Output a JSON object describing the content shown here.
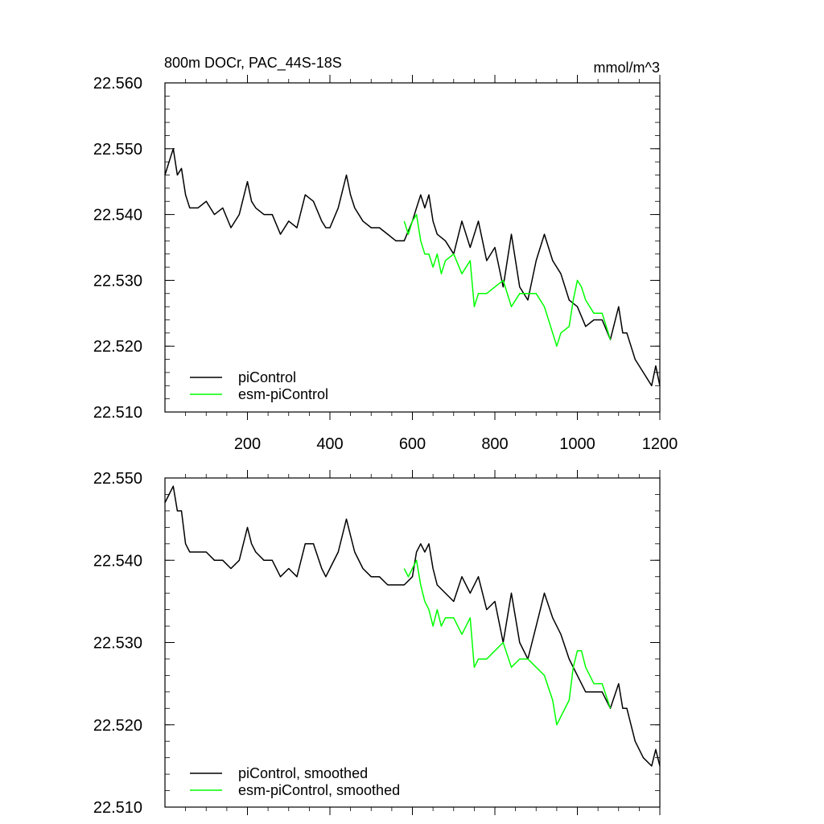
{
  "chart_data": [
    {
      "type": "line",
      "title": "800m DOCr, PAC_44S-18S",
      "units": "mmol/m^3",
      "xlim": [
        0,
        1200
      ],
      "ylim": [
        22.51,
        22.56
      ],
      "x_ticks": [
        200,
        400,
        600,
        800,
        1000,
        1200
      ],
      "x_tick_labels": [
        "200",
        "400",
        "600",
        "800",
        "1000",
        "1200"
      ],
      "y_ticks": [
        22.51,
        22.52,
        22.53,
        22.54,
        22.55,
        22.56
      ],
      "y_tick_labels": [
        "22.510",
        "22.520",
        "22.530",
        "22.540",
        "22.550",
        "22.560"
      ],
      "legend_position": "bottom-left",
      "series": [
        {
          "name": "piControl",
          "color": "#000000",
          "x": [
            0,
            10,
            20,
            30,
            40,
            50,
            60,
            80,
            100,
            120,
            140,
            160,
            180,
            200,
            210,
            220,
            240,
            260,
            280,
            300,
            320,
            340,
            360,
            380,
            390,
            400,
            420,
            440,
            450,
            460,
            480,
            500,
            520,
            540,
            560,
            580,
            600,
            610,
            620,
            630,
            640,
            650,
            660,
            680,
            700,
            720,
            740,
            760,
            780,
            800,
            820,
            840,
            860,
            880,
            900,
            920,
            940,
            960,
            980,
            1000,
            1020,
            1040,
            1060,
            1080,
            1100,
            1110,
            1120,
            1140,
            1160,
            1180,
            1190,
            1200
          ],
          "y": [
            22.546,
            22.548,
            22.55,
            22.546,
            22.547,
            22.543,
            22.541,
            22.541,
            22.542,
            22.54,
            22.541,
            22.538,
            22.54,
            22.545,
            22.542,
            22.541,
            22.54,
            22.54,
            22.537,
            22.539,
            22.538,
            22.543,
            22.542,
            22.539,
            22.538,
            22.538,
            22.541,
            22.546,
            22.543,
            22.541,
            22.539,
            22.538,
            22.538,
            22.537,
            22.536,
            22.536,
            22.539,
            22.541,
            22.543,
            22.541,
            22.543,
            22.539,
            22.537,
            22.536,
            22.534,
            22.539,
            22.535,
            22.539,
            22.533,
            22.535,
            22.529,
            22.537,
            22.529,
            22.527,
            22.533,
            22.537,
            22.533,
            22.531,
            22.527,
            22.526,
            22.523,
            22.524,
            22.524,
            22.521,
            22.526,
            22.522,
            22.522,
            22.518,
            22.516,
            22.514,
            22.517,
            22.514
          ]
        },
        {
          "name": "esm-piControl",
          "color": "#00ff00",
          "x": [
            580,
            590,
            600,
            610,
            620,
            630,
            640,
            650,
            660,
            670,
            680,
            700,
            720,
            740,
            750,
            760,
            780,
            800,
            820,
            840,
            860,
            880,
            900,
            920,
            940,
            950,
            960,
            980,
            990,
            1000,
            1010,
            1020,
            1040,
            1060,
            1080
          ],
          "y": [
            22.539,
            22.537,
            22.539,
            22.54,
            22.536,
            22.534,
            22.534,
            22.532,
            22.534,
            22.531,
            22.533,
            22.534,
            22.531,
            22.533,
            22.526,
            22.528,
            22.528,
            22.529,
            22.53,
            22.526,
            22.528,
            22.528,
            22.528,
            22.526,
            22.522,
            22.52,
            22.522,
            22.523,
            22.527,
            22.53,
            22.529,
            22.527,
            22.525,
            22.525,
            22.521
          ]
        }
      ]
    },
    {
      "type": "line",
      "xlim": [
        0,
        1200
      ],
      "ylim": [
        22.51,
        22.55
      ],
      "y_ticks": [
        22.51,
        22.52,
        22.53,
        22.54,
        22.55
      ],
      "y_tick_labels": [
        "22.510",
        "22.520",
        "22.530",
        "22.540",
        "22.550"
      ],
      "x_ticks": [
        200,
        400,
        600,
        800,
        1000,
        1200
      ],
      "legend_position": "bottom-left",
      "series": [
        {
          "name": "piControl, smoothed",
          "color": "#000000",
          "x": [
            0,
            10,
            20,
            30,
            40,
            50,
            60,
            80,
            100,
            120,
            140,
            160,
            180,
            200,
            210,
            220,
            240,
            260,
            280,
            300,
            320,
            340,
            360,
            380,
            390,
            400,
            420,
            440,
            450,
            460,
            480,
            500,
            520,
            540,
            560,
            580,
            600,
            610,
            620,
            630,
            640,
            650,
            660,
            680,
            700,
            720,
            740,
            760,
            780,
            800,
            820,
            840,
            860,
            880,
            900,
            920,
            940,
            960,
            980,
            1000,
            1020,
            1040,
            1060,
            1080,
            1100,
            1110,
            1120,
            1140,
            1160,
            1180,
            1190,
            1200
          ],
          "y": [
            22.547,
            22.548,
            22.549,
            22.546,
            22.546,
            22.542,
            22.541,
            22.541,
            22.541,
            22.54,
            22.54,
            22.539,
            22.54,
            22.544,
            22.542,
            22.541,
            22.54,
            22.54,
            22.538,
            22.539,
            22.538,
            22.542,
            22.542,
            22.539,
            22.538,
            22.539,
            22.541,
            22.545,
            22.543,
            22.541,
            22.539,
            22.538,
            22.538,
            22.537,
            22.537,
            22.537,
            22.538,
            22.541,
            22.542,
            22.541,
            22.542,
            22.539,
            22.537,
            22.536,
            22.535,
            22.538,
            22.536,
            22.538,
            22.534,
            22.535,
            22.53,
            22.536,
            22.53,
            22.528,
            22.532,
            22.536,
            22.533,
            22.531,
            22.528,
            22.526,
            22.524,
            22.524,
            22.524,
            22.522,
            22.525,
            22.522,
            22.522,
            22.518,
            22.516,
            22.515,
            22.517,
            22.515
          ]
        },
        {
          "name": "esm-piControl, smoothed",
          "color": "#00ff00",
          "x": [
            580,
            590,
            600,
            610,
            620,
            630,
            640,
            650,
            660,
            670,
            680,
            700,
            720,
            740,
            750,
            760,
            780,
            800,
            820,
            840,
            860,
            880,
            900,
            920,
            940,
            950,
            960,
            980,
            990,
            1000,
            1010,
            1020,
            1040,
            1060,
            1080
          ],
          "y": [
            22.539,
            22.538,
            22.539,
            22.54,
            22.537,
            22.535,
            22.534,
            22.532,
            22.534,
            22.532,
            22.533,
            22.533,
            22.531,
            22.533,
            22.527,
            22.528,
            22.528,
            22.529,
            22.53,
            22.527,
            22.528,
            22.528,
            22.527,
            22.526,
            22.523,
            22.52,
            22.521,
            22.523,
            22.527,
            22.529,
            22.529,
            22.527,
            22.525,
            22.525,
            22.522
          ]
        }
      ]
    }
  ]
}
